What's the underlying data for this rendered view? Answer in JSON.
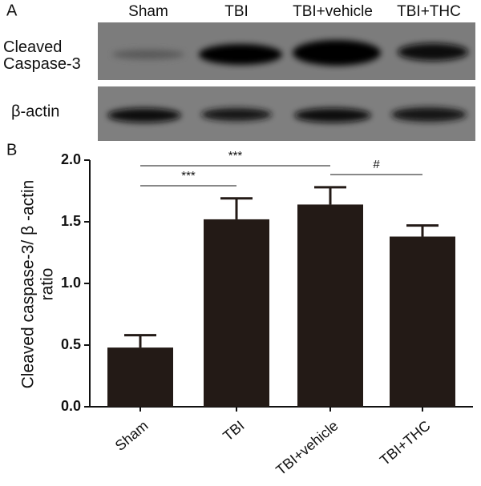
{
  "chart_data": {
    "type": "bar",
    "panel_labels": [
      "A",
      "B"
    ],
    "blot_labels": [
      "Cleaved\nCaspase-3",
      "β-actin"
    ],
    "y_label": [
      "Cleaved caspase-3/ β -actin",
      "ratio"
    ],
    "categories": [
      "Sham",
      "TBI",
      "TBI+vehicle",
      "TBI+THC"
    ],
    "values": [
      0.48,
      1.52,
      1.64,
      1.38
    ],
    "errors": [
      0.1,
      0.17,
      0.14,
      0.09
    ],
    "color": "#231a16",
    "ylim": [
      0,
      2.0
    ],
    "yticks": [
      {
        "value": 0,
        "label": "0.0"
      },
      {
        "value": 0.5,
        "label": "0.5"
      },
      {
        "value": 1,
        "label": "1.0"
      },
      {
        "value": 1.5,
        "label": "1.5"
      },
      {
        "value": 2,
        "label": "2.0"
      }
    ],
    "annotations": [
      "***",
      "***",
      "#"
    ]
  }
}
